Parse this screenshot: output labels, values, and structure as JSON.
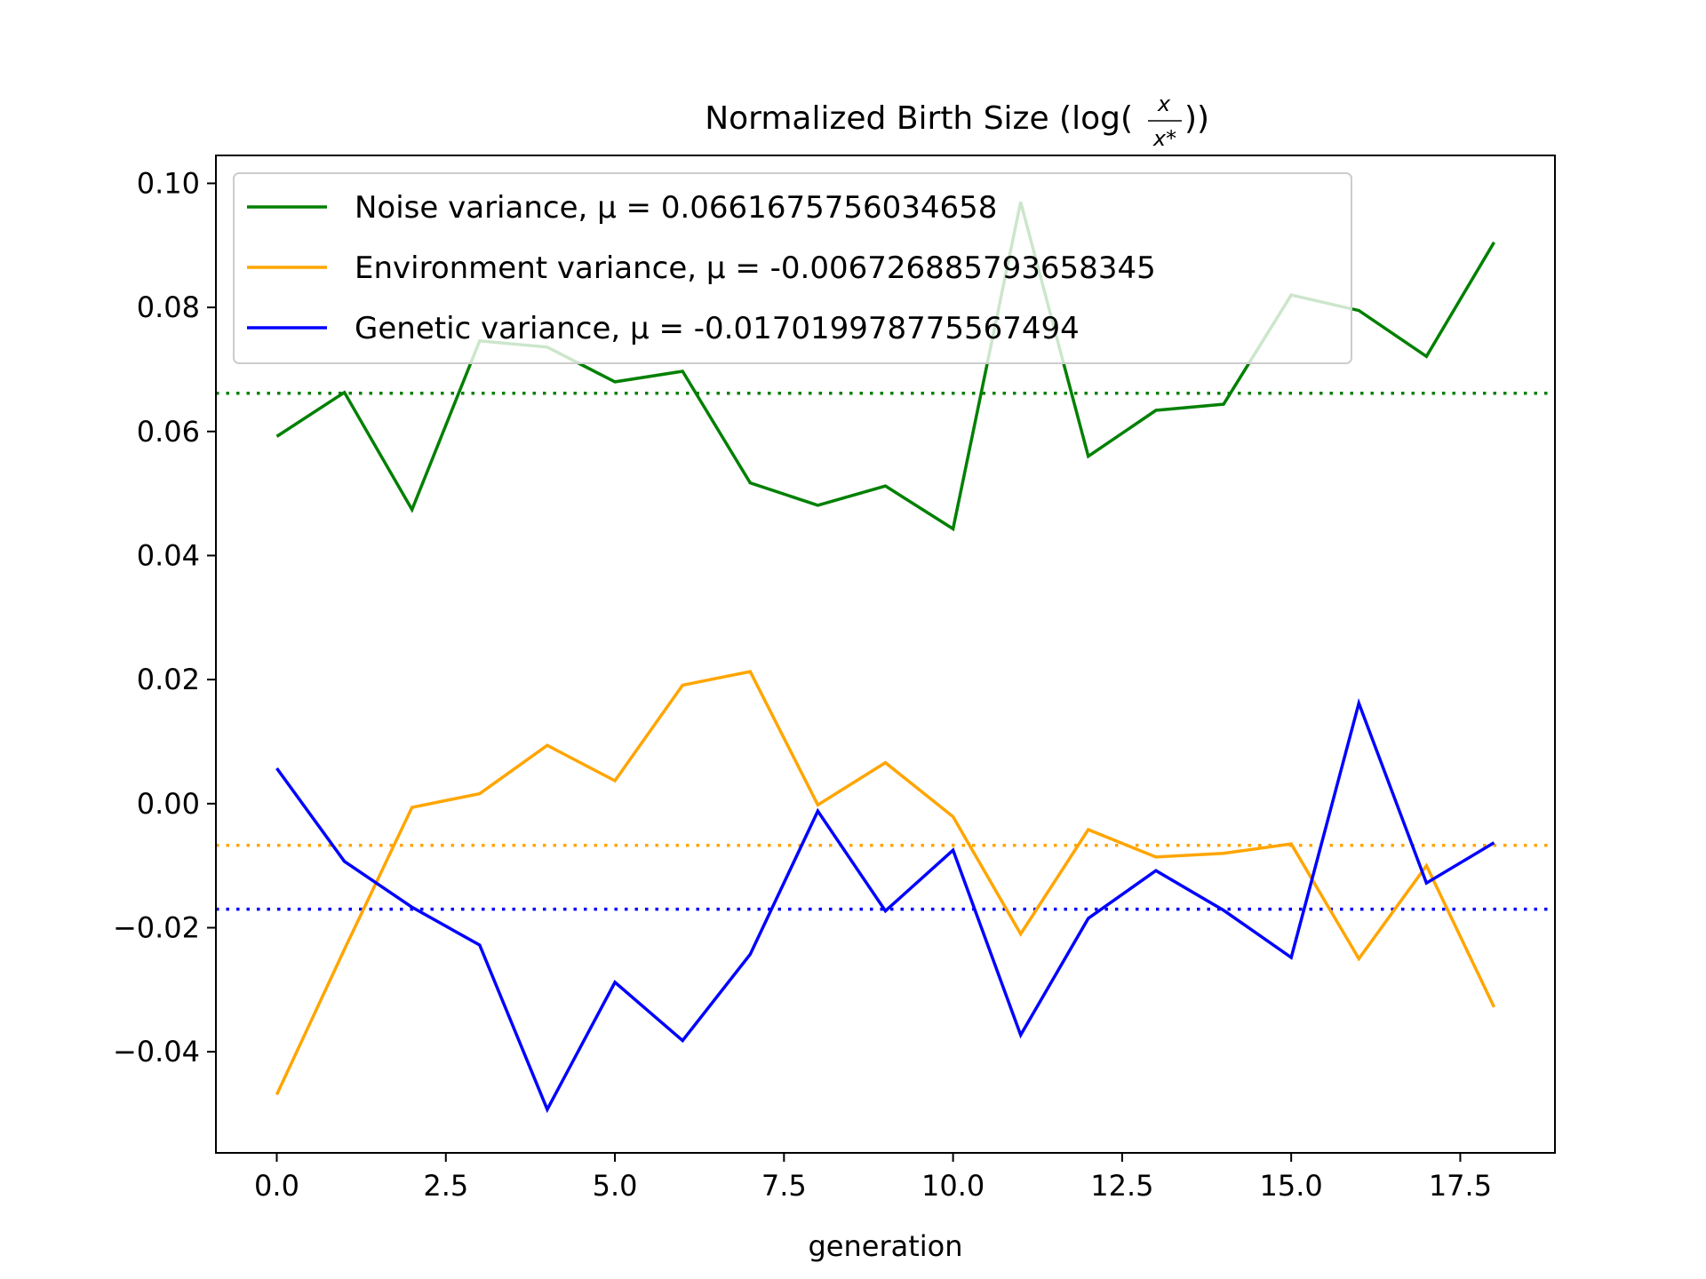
{
  "chart_data": {
    "type": "line",
    "title_main": "Normalized Birth Size (log(",
    "title_close": "))",
    "title_frac_num": "x",
    "title_frac_den": "x*",
    "xlabel": "generation",
    "ylabel": "",
    "xlim": [
      -0.9,
      18.9
    ],
    "ylim": [
      -0.0563,
      0.1045
    ],
    "x_ticks": [
      0.0,
      2.5,
      5.0,
      7.5,
      10.0,
      12.5,
      15.0,
      17.5
    ],
    "x_tick_labels": [
      "0.0",
      "2.5",
      "5.0",
      "7.5",
      "10.0",
      "12.5",
      "15.0",
      "17.5"
    ],
    "y_ticks": [
      -0.04,
      -0.02,
      0.0,
      0.02,
      0.04,
      0.06,
      0.08,
      0.1
    ],
    "y_tick_labels": [
      "−0.04",
      "−0.02",
      "0.00",
      "0.02",
      "0.04",
      "0.06",
      "0.08",
      "0.10"
    ],
    "legend_position": "top-left",
    "x": [
      0,
      1,
      2,
      3,
      4,
      5,
      6,
      7,
      8,
      9,
      10,
      11,
      12,
      13,
      14,
      15,
      16,
      17,
      18
    ],
    "series": [
      {
        "name": "Noise variance",
        "legend_label": "Noise variance, μ = 0.0661675756034658",
        "color": "#008000",
        "mean": 0.0661675756034658,
        "values": [
          0.0592,
          0.0663,
          0.0474,
          0.0746,
          0.0736,
          0.068,
          0.0697,
          0.0517,
          0.0481,
          0.0512,
          0.0443,
          0.097,
          0.056,
          0.0634,
          0.0644,
          0.082,
          0.0795,
          0.0721,
          0.0905
        ]
      },
      {
        "name": "Environment variance",
        "legend_label": "Environment variance, μ = -0.006726885793658345",
        "color": "#FFA500",
        "mean": -0.006726885793658345,
        "values": [
          -0.0469,
          -0.0235,
          -0.0006,
          0.0016,
          0.0094,
          0.0037,
          0.0191,
          0.0213,
          -0.0002,
          0.0066,
          -0.0021,
          -0.021,
          -0.0042,
          -0.0086,
          -0.008,
          -0.0065,
          -0.025,
          -0.01,
          -0.0328
        ]
      },
      {
        "name": "Genetic variance",
        "legend_label": "Genetic variance, μ = -0.017019978775567494",
        "color": "#0000FF",
        "mean": -0.017019978775567494,
        "values": [
          0.0057,
          -0.0093,
          -0.0167,
          -0.0228,
          -0.0493,
          -0.0288,
          -0.0382,
          -0.0243,
          -0.0012,
          -0.0173,
          -0.0075,
          -0.0373,
          -0.0185,
          -0.0108,
          -0.0172,
          -0.0248,
          0.0162,
          -0.0128,
          -0.0063
        ]
      }
    ]
  }
}
